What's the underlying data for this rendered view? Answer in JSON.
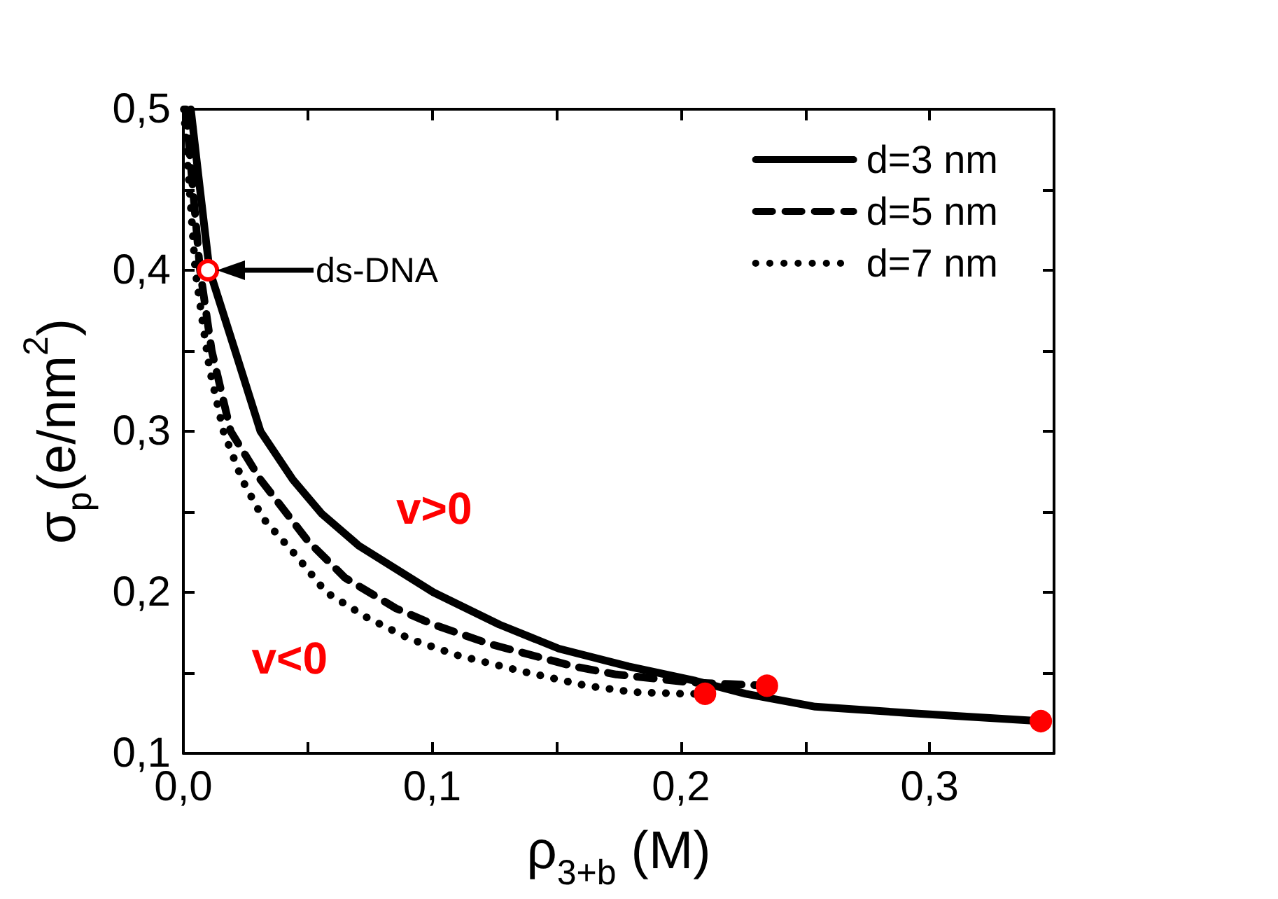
{
  "chart_data": {
    "type": "line",
    "xlabel": "ρ$_{3+b}$ (M)",
    "ylabel": "σ$_{p}$(e/nm$^{2}$)",
    "xlim": [
      0,
      0.35
    ],
    "xticks": [
      {
        "value": 0,
        "label": "0,0"
      },
      {
        "value": 0.05,
        "label": null
      },
      {
        "value": 0.1,
        "label": "0,1"
      },
      {
        "value": 0.15,
        "label": null
      },
      {
        "value": 0.2,
        "label": "0,2"
      },
      {
        "value": 0.25,
        "label": null
      },
      {
        "value": 0.3,
        "label": "0,3"
      }
    ],
    "ylim": [
      0.1,
      0.5
    ],
    "yticks": [
      {
        "value": 0.1,
        "label": "0,1"
      },
      {
        "value": 0.15,
        "label": null
      },
      {
        "value": 0.2,
        "label": "0,2"
      },
      {
        "value": 0.25,
        "label": null
      },
      {
        "value": 0.3,
        "label": "0,3"
      },
      {
        "value": 0.35,
        "label": null
      },
      {
        "value": 0.4,
        "label": "0,4"
      },
      {
        "value": 0.45,
        "label": null
      },
      {
        "value": 0.5,
        "label": "0,5"
      }
    ],
    "legend": "top right",
    "marker": "none",
    "series": [
      {
        "name": "d=3 nm",
        "color": "#000000",
        "line_style": "solid",
        "x": [
          0.003,
          0.0067,
          0.0105,
          0.0208,
          0.031,
          0.044,
          0.0555,
          0.0705,
          0.1005,
          0.127,
          0.151,
          0.179,
          0.206,
          0.226,
          0.254,
          0.292,
          0.345
        ],
        "values": [
          0.5,
          0.45,
          0.4,
          0.35,
          0.3,
          0.27,
          0.249,
          0.229,
          0.2,
          0.18,
          0.165,
          0.154,
          0.145,
          0.137,
          0.129,
          0.125,
          0.12
        ]
      },
      {
        "name": "d=5 nm",
        "color": "#000000",
        "line_style": "dashed",
        "x": [
          0.001,
          0.0067,
          0.0114,
          0.019,
          0.031,
          0.05,
          0.065,
          0.0855,
          0.1005,
          0.123,
          0.157,
          0.174,
          0.204,
          0.22,
          0.235
        ],
        "values": [
          0.5,
          0.4,
          0.35,
          0.3,
          0.27,
          0.232,
          0.209,
          0.19,
          0.18,
          0.168,
          0.154,
          0.149,
          0.144,
          0.143,
          0.142
        ]
      },
      {
        "name": "d=7 nm",
        "color": "#000000",
        "line_style": "dotted",
        "x": [
          0.0002,
          0.0048,
          0.0077,
          0.0105,
          0.0161,
          0.0236,
          0.032,
          0.0452,
          0.0574,
          0.0742,
          0.0911,
          0.11,
          0.136,
          0.162,
          0.181,
          0.201,
          0.21
        ],
        "values": [
          0.5,
          0.4,
          0.368,
          0.339,
          0.3,
          0.27,
          0.246,
          0.223,
          0.2,
          0.184,
          0.171,
          0.161,
          0.151,
          0.142,
          0.138,
          0.137,
          0.137
        ]
      },
      {
        "type": "scatter",
        "color": "#ff0000",
        "marker": "circle",
        "x": [
          0.2097,
          0.2346,
          0.3447
        ],
        "values": [
          0.137,
          0.142,
          0.12
        ]
      },
      {
        "type": "scatter",
        "color": "#ff0000",
        "colors": [
          "#ffffff"
        ],
        "marker": "circle",
        "x": [
          0.0099
        ],
        "values": [
          0.4
        ]
      }
    ],
    "annotations": [
      "ds-DNA",
      "v>0",
      "v<0"
    ]
  }
}
